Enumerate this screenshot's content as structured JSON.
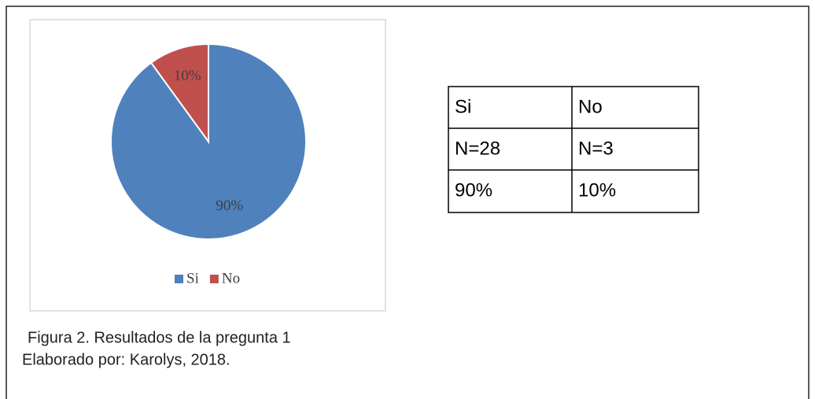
{
  "chart_data": {
    "type": "pie",
    "categories": [
      "Si",
      "No"
    ],
    "values": [
      90,
      10
    ],
    "value_labels": [
      "90%",
      "10%"
    ],
    "colors": [
      "#4f81bd",
      "#c0504d"
    ],
    "legend": "bottom"
  },
  "table": {
    "rows": [
      [
        "Si",
        "No"
      ],
      [
        "N=28",
        "N=3"
      ],
      [
        "90%",
        "10%"
      ]
    ]
  },
  "caption": {
    "lines": [
      "Figura 2. Resultados de la pregunta 1",
      "Elaborado por: Karolys, 2018."
    ]
  }
}
